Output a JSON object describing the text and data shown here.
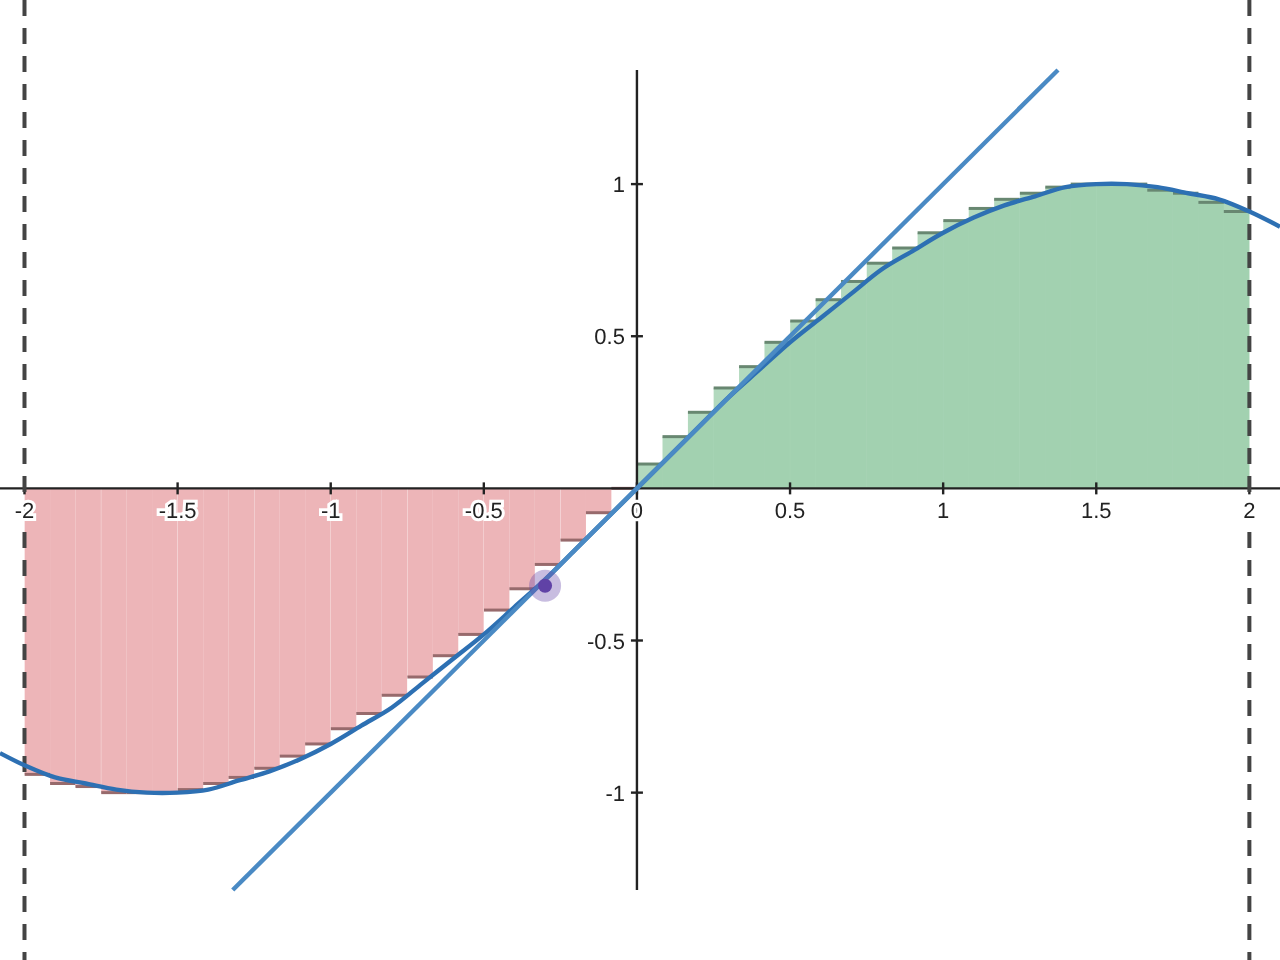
{
  "chart_data": {
    "type": "line",
    "xlim": [
      -2.08,
      2.1
    ],
    "ylim": [
      -1.32,
      1.375
    ],
    "xticks": [
      -2,
      -1.5,
      -1,
      -0.5,
      0,
      0.5,
      1,
      1.5,
      2
    ],
    "yticks": [
      -1,
      -0.5,
      0.5,
      1
    ],
    "grid": false,
    "series": [
      {
        "type": "area",
        "color": "#a5d3b3",
        "x": [
          0,
          0.1,
          0.2,
          0.3,
          0.4,
          0.5,
          0.6,
          0.7,
          0.8,
          0.9,
          1.0,
          1.1,
          1.2,
          1.3,
          1.4,
          1.5,
          1.6,
          1.7,
          1.8,
          1.9,
          2.0
        ],
        "values": [
          0,
          0.1,
          0.2,
          0.3,
          0.39,
          0.48,
          0.56,
          0.64,
          0.72,
          0.78,
          0.84,
          0.89,
          0.93,
          0.96,
          0.99,
          1.0,
          1.0,
          0.99,
          0.97,
          0.95,
          0.91
        ]
      },
      {
        "type": "bar",
        "color": "#e8a3a6",
        "x": [
          -1.958,
          -1.875,
          -1.792,
          -1.708,
          -1.625,
          -1.542,
          -1.458,
          -1.375,
          -1.292,
          -1.208,
          -1.125,
          -1.042,
          -0.958,
          -0.875,
          -0.792,
          -0.708,
          -0.625,
          -0.542,
          -0.458,
          -0.375,
          -0.292,
          -0.208,
          -0.125,
          -0.042
        ],
        "values": [
          -0.94,
          -0.97,
          -0.98,
          -1.0,
          -1.0,
          -1.0,
          -0.99,
          -0.97,
          -0.95,
          -0.92,
          -0.88,
          -0.84,
          -0.79,
          -0.74,
          -0.68,
          -0.62,
          -0.55,
          -0.48,
          -0.4,
          -0.33,
          -0.25,
          -0.17,
          -0.08,
          0
        ]
      },
      {
        "type": "bar",
        "color": "#9fcfae",
        "x": [
          0.042,
          0.125,
          0.208,
          0.292,
          0.375,
          0.458,
          0.542,
          0.625,
          0.708,
          0.792,
          0.875,
          0.958,
          1.042,
          1.125,
          1.208,
          1.292,
          1.375,
          1.458,
          1.542,
          1.625,
          1.708,
          1.792,
          1.875,
          1.958
        ],
        "values": [
          0.08,
          0.17,
          0.25,
          0.33,
          0.4,
          0.48,
          0.55,
          0.62,
          0.68,
          0.74,
          0.79,
          0.84,
          0.88,
          0.92,
          0.95,
          0.97,
          0.99,
          1.0,
          1.0,
          1.0,
          0.98,
          0.97,
          0.94,
          0.91
        ]
      },
      {
        "color": "#2d70b3",
        "x": [
          -2.08,
          -2.0,
          -1.9,
          -1.8,
          -1.7,
          -1.6,
          -1.5,
          -1.4,
          -1.3,
          -1.2,
          -1.1,
          -1.0,
          -0.9,
          -0.8,
          -0.7,
          -0.6,
          -0.5,
          -0.4,
          -0.3,
          -0.2,
          -0.1,
          0,
          0.1,
          0.2,
          0.3,
          0.4,
          0.5,
          0.6,
          0.7,
          0.8,
          0.9,
          1.0,
          1.1,
          1.2,
          1.3,
          1.4,
          1.5,
          1.6,
          1.7,
          1.8,
          1.9,
          2.0,
          2.1
        ],
        "values": [
          -0.87,
          -0.91,
          -0.95,
          -0.97,
          -0.99,
          -1.0,
          -1.0,
          -0.99,
          -0.96,
          -0.93,
          -0.89,
          -0.84,
          -0.78,
          -0.72,
          -0.64,
          -0.56,
          -0.48,
          -0.39,
          -0.3,
          -0.2,
          -0.1,
          0,
          0.1,
          0.2,
          0.3,
          0.39,
          0.48,
          0.56,
          0.64,
          0.72,
          0.78,
          0.84,
          0.89,
          0.93,
          0.96,
          0.99,
          1.0,
          1.0,
          0.99,
          0.97,
          0.95,
          0.91,
          0.86
        ]
      },
      {
        "type": "line",
        "color": "#4a8ac4",
        "x": [
          -1.32,
          1.375
        ],
        "values": [
          -1.32,
          1.375
        ]
      },
      {
        "type": "scatter",
        "color": "#6042a6",
        "x": [
          -0.3
        ],
        "values": [
          -0.32
        ]
      }
    ],
    "ref_lines": [
      {
        "axis": "x",
        "value": -2,
        "color": "#444444",
        "line_style": "dashed"
      },
      {
        "axis": "x",
        "value": 2,
        "color": "#444444",
        "line_style": "dashed"
      }
    ]
  }
}
